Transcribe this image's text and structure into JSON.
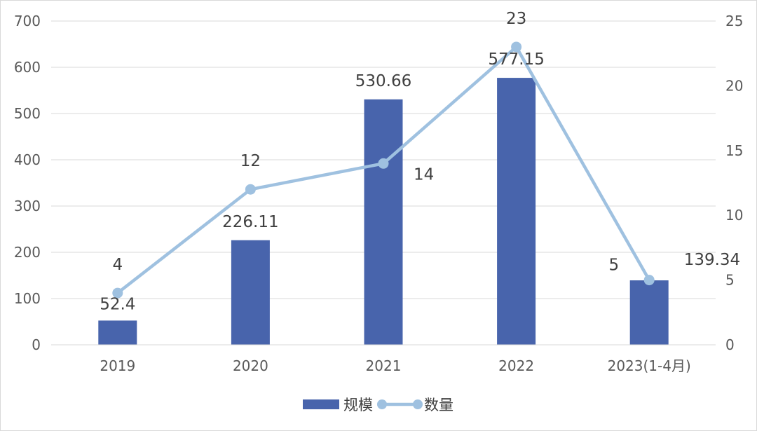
{
  "chart_data": {
    "type": "bar",
    "categories": [
      "2019",
      "2020",
      "2021",
      "2022",
      "2023(1-4月)"
    ],
    "series": [
      {
        "name": "规模",
        "type": "bar",
        "axis": "left",
        "values": [
          52.4,
          226.11,
          530.66,
          577.15,
          139.34
        ],
        "data_labels": [
          "52.4",
          "226.11",
          "530.66",
          "577.15",
          "139.34"
        ],
        "color": "#4864ac"
      },
      {
        "name": "数量",
        "type": "line",
        "axis": "right",
        "values": [
          4,
          12,
          14,
          23,
          5
        ],
        "data_labels": [
          "4",
          "12",
          "14",
          "23",
          "5"
        ],
        "color": "#9fc1e0"
      }
    ],
    "y_left": {
      "lim": [
        0,
        700
      ],
      "ticks": [
        "0",
        "100",
        "200",
        "300",
        "400",
        "500",
        "600",
        "700"
      ]
    },
    "y_right": {
      "lim": [
        0,
        25
      ],
      "ticks": [
        "0",
        "5",
        "10",
        "15",
        "20",
        "25"
      ]
    },
    "grid": true,
    "legend": "bottom",
    "colors": {
      "grid": "#d9d9d9",
      "axis": "#d9d9d9",
      "text": "#595959"
    }
  }
}
